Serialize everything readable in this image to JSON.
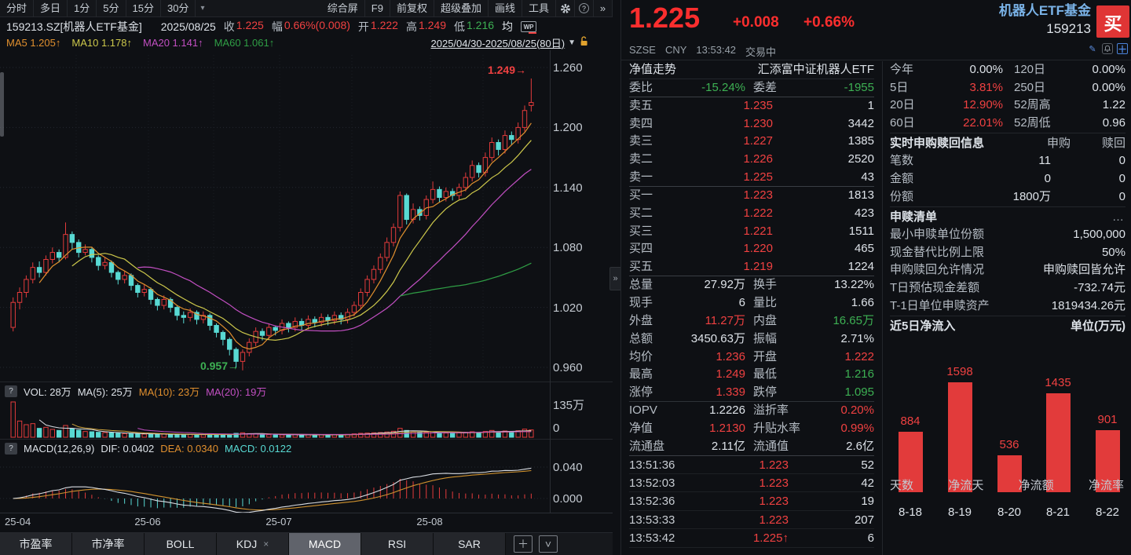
{
  "toolbar": {
    "left_items": [
      "分时",
      "多日",
      "1分",
      "5分",
      "15分",
      "30分"
    ],
    "dropdown_icon": "▾",
    "right_items": [
      "综合屏",
      "F9",
      "前复权",
      "超级叠加",
      "画线",
      "工具"
    ],
    "help_icon": "?",
    "more_icon": "»"
  },
  "info_bar": {
    "symbol": "159213.SZ[机器人ETF基金]",
    "date": "2025/08/25",
    "fields": [
      {
        "label": "收",
        "value": "1.225",
        "color": "red"
      },
      {
        "label": "幅",
        "value": "0.66%(0.008)",
        "color": "red"
      },
      {
        "label": "开",
        "value": "1.222",
        "color": "red"
      },
      {
        "label": "高",
        "value": "1.249",
        "color": "red"
      },
      {
        "label": "低",
        "value": "1.216",
        "color": "green"
      }
    ],
    "avg_label": "均",
    "wp_icon": "WP"
  },
  "ma_bar": {
    "items": [
      "MA5 1.205↑",
      "MA10 1.178↑",
      "MA20 1.141↑",
      "MA60 1.061↑"
    ],
    "date_range": "2025/04/30-2025/08/25(80日)",
    "dropdown": "▼"
  },
  "vol_header": {
    "help": "?",
    "vol": "VOL: 28万",
    "ma5": "MA(5): 25万",
    "ma10": "MA(10): 23万",
    "ma20": "MA(20): 19万"
  },
  "macd_header": {
    "help": "?",
    "name": "MACD(12,26,9)",
    "dif": "DIF: 0.0402",
    "dea": "DEA: 0.0340",
    "macd": "MACD: 0.0122"
  },
  "tabs": {
    "items": [
      {
        "label": "市盈率",
        "active": false,
        "closable": false
      },
      {
        "label": "市净率",
        "active": false,
        "closable": false
      },
      {
        "label": "BOLL",
        "active": false,
        "closable": false
      },
      {
        "label": "KDJ",
        "active": false,
        "closable": true
      },
      {
        "label": "MACD",
        "active": true,
        "closable": false
      },
      {
        "label": "RSI",
        "active": false,
        "closable": false
      },
      {
        "label": "SAR",
        "active": false,
        "closable": false
      }
    ],
    "close_icon": "×",
    "add_icon": "＋",
    "expand_icon": "˅"
  },
  "chart_data": [
    {
      "type": "candlestick",
      "title": "159213.SZ 机器人ETF基金 日K 2025/04/30-2025/08/25(80日)",
      "price_ticks": [
        1.26,
        1.2,
        1.14,
        1.08,
        1.02,
        0.96
      ],
      "x_ticks": [
        {
          "label": "25-04",
          "index": 0
        },
        {
          "label": "25-06",
          "index": 21
        },
        {
          "label": "25-07",
          "index": 41
        },
        {
          "label": "25-08",
          "index": 64
        }
      ],
      "high_annotation": "1.249→",
      "low_annotation": "0.957→",
      "high_index": 79,
      "low_index": 35,
      "vol_ticks": [
        "135万",
        "0"
      ],
      "vol_max": 135,
      "macd_ticks": [
        "0.040",
        "0.000"
      ],
      "colors": {
        "up": "#e23b3b",
        "down": "#58d9d3",
        "ma5": "#e08f2e",
        "ma10": "#cdc84b",
        "ma20": "#c24fc2",
        "ma60": "#2f9e45",
        "dif": "#d8dce2",
        "dea": "#d0922e",
        "vol_ma5": "#d8dce2",
        "vol_ma10": "#d0a43c",
        "vol_ma20": "#c24fc2"
      },
      "candles": [
        [
          1.0,
          1.03,
          0.996,
          1.025
        ],
        [
          1.025,
          1.04,
          1.018,
          1.035
        ],
        [
          1.035,
          1.052,
          1.03,
          1.048
        ],
        [
          1.048,
          1.065,
          1.044,
          1.06
        ],
        [
          1.06,
          1.066,
          1.05,
          1.055
        ],
        [
          1.055,
          1.072,
          1.052,
          1.068
        ],
        [
          1.068,
          1.08,
          1.064,
          1.075
        ],
        [
          1.075,
          1.078,
          1.065,
          1.07
        ],
        [
          1.07,
          1.105,
          1.068,
          1.093
        ],
        [
          1.093,
          1.096,
          1.078,
          1.085
        ],
        [
          1.085,
          1.088,
          1.07,
          1.075
        ],
        [
          1.075,
          1.083,
          1.072,
          1.078
        ],
        [
          1.078,
          1.08,
          1.065,
          1.07
        ],
        [
          1.07,
          1.072,
          1.057,
          1.062
        ],
        [
          1.062,
          1.07,
          1.058,
          1.065
        ],
        [
          1.065,
          1.067,
          1.05,
          1.055
        ],
        [
          1.055,
          1.057,
          1.043,
          1.048
        ],
        [
          1.048,
          1.056,
          1.044,
          1.052
        ],
        [
          1.052,
          1.054,
          1.037,
          1.042
        ],
        [
          1.042,
          1.044,
          1.03,
          1.035
        ],
        [
          1.035,
          1.043,
          1.031,
          1.038
        ],
        [
          1.038,
          1.04,
          1.023,
          1.028
        ],
        [
          1.028,
          1.03,
          1.017,
          1.022
        ],
        [
          1.022,
          1.032,
          1.018,
          1.028
        ],
        [
          1.028,
          1.03,
          1.015,
          1.02
        ],
        [
          1.02,
          1.022,
          1.007,
          1.012
        ],
        [
          1.012,
          1.016,
          1.004,
          1.01
        ],
        [
          1.01,
          1.019,
          1.006,
          1.015
        ],
        [
          1.015,
          1.017,
          1.003,
          1.008
        ],
        [
          1.008,
          1.016,
          1.004,
          1.012
        ],
        [
          1.012,
          1.014,
          0.997,
          1.002
        ],
        [
          1.002,
          1.004,
          0.99,
          0.995
        ],
        [
          0.995,
          0.997,
          0.982,
          0.988
        ],
        [
          0.988,
          0.99,
          0.972,
          0.978
        ],
        [
          0.978,
          0.98,
          0.96,
          0.966
        ],
        [
          0.966,
          0.978,
          0.957,
          0.975
        ],
        [
          0.975,
          0.989,
          0.971,
          0.985
        ],
        [
          0.985,
          1.0,
          0.981,
          0.996
        ],
        [
          0.996,
          0.999,
          0.987,
          0.992
        ],
        [
          0.992,
          1.004,
          0.988,
          1.0
        ],
        [
          1.0,
          1.002,
          0.992,
          0.997
        ],
        [
          0.997,
          1.008,
          0.993,
          1.004
        ],
        [
          1.004,
          1.006,
          0.995,
          1.0
        ],
        [
          1.0,
          1.01,
          0.996,
          1.006
        ],
        [
          1.006,
          1.009,
          0.997,
          1.002
        ],
        [
          1.002,
          1.012,
          0.998,
          1.008
        ],
        [
          1.008,
          1.011,
          1.0,
          1.005
        ],
        [
          1.005,
          1.014,
          1.001,
          1.01
        ],
        [
          1.01,
          1.013,
          1.002,
          1.007
        ],
        [
          1.007,
          1.016,
          1.003,
          1.012
        ],
        [
          1.012,
          1.015,
          1.003,
          1.008
        ],
        [
          1.008,
          1.019,
          1.004,
          1.015
        ],
        [
          1.015,
          1.026,
          1.011,
          1.022
        ],
        [
          1.022,
          1.039,
          1.018,
          1.035
        ],
        [
          1.035,
          1.052,
          1.031,
          1.048
        ],
        [
          1.048,
          1.062,
          1.044,
          1.058
        ],
        [
          1.058,
          1.074,
          1.054,
          1.07
        ],
        [
          1.07,
          1.09,
          1.066,
          1.085
        ],
        [
          1.085,
          1.104,
          1.081,
          1.1
        ],
        [
          1.1,
          1.136,
          1.096,
          1.132
        ],
        [
          1.132,
          1.134,
          1.103,
          1.108
        ],
        [
          1.108,
          1.124,
          1.104,
          1.118
        ],
        [
          1.118,
          1.121,
          1.107,
          1.112
        ],
        [
          1.112,
          1.132,
          1.108,
          1.128
        ],
        [
          1.128,
          1.146,
          1.124,
          1.138
        ],
        [
          1.138,
          1.141,
          1.125,
          1.13
        ],
        [
          1.13,
          1.14,
          1.126,
          1.136
        ],
        [
          1.136,
          1.139,
          1.127,
          1.132
        ],
        [
          1.132,
          1.144,
          1.128,
          1.14
        ],
        [
          1.14,
          1.155,
          1.136,
          1.15
        ],
        [
          1.15,
          1.167,
          1.146,
          1.162
        ],
        [
          1.162,
          1.165,
          1.15,
          1.155
        ],
        [
          1.155,
          1.175,
          1.151,
          1.17
        ],
        [
          1.17,
          1.19,
          1.166,
          1.185
        ],
        [
          1.185,
          1.188,
          1.172,
          1.178
        ],
        [
          1.178,
          1.197,
          1.174,
          1.192
        ],
        [
          1.192,
          1.196,
          1.183,
          1.188
        ],
        [
          1.188,
          1.205,
          1.184,
          1.2
        ],
        [
          1.2,
          1.222,
          1.196,
          1.217
        ],
        [
          1.222,
          1.249,
          1.216,
          1.225
        ]
      ],
      "volumes": [
        135,
        62,
        48,
        52,
        34,
        38,
        30,
        26,
        45,
        33,
        27,
        22,
        21,
        19,
        18,
        17,
        15,
        14,
        14,
        13,
        12,
        13,
        11,
        12,
        11,
        10,
        10,
        11,
        10,
        10,
        11,
        10,
        10,
        12,
        15,
        17,
        14,
        13,
        11,
        10,
        10,
        9,
        9,
        10,
        9,
        10,
        9,
        10,
        9,
        10,
        9,
        11,
        13,
        15,
        16,
        17,
        18,
        20,
        23,
        34,
        26,
        20,
        18,
        19,
        21,
        17,
        16,
        15,
        17,
        19,
        21,
        18,
        22,
        26,
        21,
        24,
        20,
        25,
        31,
        28
      ]
    },
    {
      "type": "bar",
      "title": "近5日净流入",
      "unit_label": "单位(万元)",
      "categories": [
        "8-18",
        "8-19",
        "8-20",
        "8-21",
        "8-22"
      ],
      "values": [
        884,
        1598,
        536,
        1435,
        901
      ],
      "bar_color": "#e23b3b",
      "ylim": [
        0,
        1700
      ],
      "footer": [
        "天数",
        "净流天",
        "净流额",
        "净流率"
      ]
    }
  ],
  "quote": {
    "price": "1.225",
    "change": "+0.008",
    "change_pct": "+0.66%",
    "name": "机器人ETF基金",
    "code": "159213",
    "buy_label": "买",
    "exchange": "SZSE",
    "currency": "CNY",
    "time": "13:53:42",
    "status": "交易中",
    "nav_row": {
      "label": "净值走势",
      "value": "汇添富中证机器人ETF"
    },
    "weibi": {
      "l1": "委比",
      "v1": "-15.24%",
      "l2": "委差",
      "v2": "-1955"
    },
    "asks": [
      {
        "label": "卖五",
        "price": "1.235",
        "vol": "1"
      },
      {
        "label": "卖四",
        "price": "1.230",
        "vol": "3442"
      },
      {
        "label": "卖三",
        "price": "1.227",
        "vol": "1385"
      },
      {
        "label": "卖二",
        "price": "1.226",
        "vol": "2520"
      },
      {
        "label": "卖一",
        "price": "1.225",
        "vol": "43"
      }
    ],
    "bids": [
      {
        "label": "买一",
        "price": "1.223",
        "vol": "1813"
      },
      {
        "label": "买二",
        "price": "1.222",
        "vol": "423"
      },
      {
        "label": "买三",
        "price": "1.221",
        "vol": "1511"
      },
      {
        "label": "买四",
        "price": "1.220",
        "vol": "465"
      },
      {
        "label": "买五",
        "price": "1.219",
        "vol": "1224"
      }
    ],
    "stats": [
      {
        "l1": "总量",
        "v1": "27.92万",
        "c1": "white",
        "l2": "换手",
        "v2": "13.22%",
        "c2": "white",
        "b": ""
      },
      {
        "l1": "现手",
        "v1": "6",
        "c1": "white",
        "l2": "量比",
        "v2": "1.66",
        "c2": "white",
        "b": ""
      },
      {
        "l1": "外盘",
        "v1": "11.27万",
        "c1": "red",
        "l2": "内盘",
        "v2": "16.65万",
        "c2": "green",
        "b": ""
      },
      {
        "l1": "总额",
        "v1": "3450.63万",
        "c1": "white",
        "l2": "振幅",
        "v2": "2.71%",
        "c2": "white",
        "b": ""
      },
      {
        "l1": "均价",
        "v1": "1.236",
        "c1": "red",
        "l2": "开盘",
        "v2": "1.222",
        "c2": "red",
        "b": ""
      },
      {
        "l1": "最高",
        "v1": "1.249",
        "c1": "red",
        "l2": "最低",
        "v2": "1.216",
        "c2": "green",
        "b": ""
      },
      {
        "l1": "涨停",
        "v1": "1.339",
        "c1": "red",
        "l2": "跌停",
        "v2": "1.095",
        "c2": "green",
        "b": "b3"
      },
      {
        "l1": "IOPV",
        "v1": "1.2226",
        "c1": "white",
        "l2": "溢折率",
        "v2": "0.20%",
        "c2": "red",
        "b": ""
      },
      {
        "l1": "净值",
        "v1": "1.2130",
        "c1": "red",
        "l2": "升贴水率",
        "v2": "0.99%",
        "c2": "red",
        "b": ""
      },
      {
        "l1": "流通盘",
        "v1": "2.11亿",
        "c1": "white",
        "l2": "流通值",
        "v2": "2.6亿",
        "c2": "white",
        "b": "b2"
      }
    ],
    "ticks": [
      {
        "time": "13:51:36",
        "price": "1.223",
        "vol": "52"
      },
      {
        "time": "13:52:03",
        "price": "1.223",
        "vol": "42"
      },
      {
        "time": "13:52:36",
        "price": "1.223",
        "vol": "19"
      },
      {
        "time": "13:53:33",
        "price": "1.223",
        "vol": "207"
      },
      {
        "time": "13:53:42",
        "price": "1.225↑",
        "vol": "6"
      }
    ]
  },
  "periods": [
    {
      "l1": "今年",
      "v1": "0.00%",
      "c1": "white",
      "l2": "120日",
      "v2": "0.00%",
      "c2": "white"
    },
    {
      "l1": "5日",
      "v1": "3.81%",
      "c1": "red",
      "l2": "250日",
      "v2": "0.00%",
      "c2": "white"
    },
    {
      "l1": "20日",
      "v1": "12.90%",
      "c1": "red",
      "l2": "52周高",
      "v2": "1.22",
      "c2": "white"
    },
    {
      "l1": "60日",
      "v1": "22.01%",
      "c1": "red",
      "l2": "52周低",
      "v2": "0.96",
      "c2": "white"
    }
  ],
  "subscribe": {
    "title": "实时申购赎回信息",
    "col1": "申购",
    "col2": "赎回",
    "rows": [
      {
        "label": "笔数",
        "v1": "11",
        "v2": "0"
      },
      {
        "label": "金额",
        "v1": "0",
        "v2": "0"
      },
      {
        "label": "份额",
        "v1": "1800万",
        "v2": "0"
      }
    ]
  },
  "redeem_list": {
    "title": "申赎清单",
    "more": "…",
    "rows": [
      {
        "label": "最小申赎单位份额",
        "value": "1,500,000"
      },
      {
        "label": "现金替代比例上限",
        "value": "50%"
      },
      {
        "label": "申购赎回允许情况",
        "value": "申购赎回皆允许"
      },
      {
        "label": "T日预估现金差额",
        "value": "-732.74元"
      },
      {
        "label": "T-1日单位申赎资产",
        "value": "1819434.26元"
      }
    ]
  }
}
